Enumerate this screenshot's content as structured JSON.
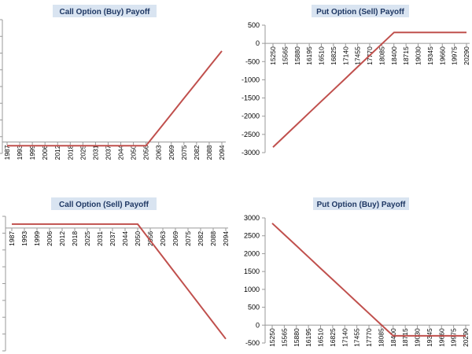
{
  "chart_data": [
    {
      "type": "line",
      "title": "Call Option (Buy) Payoff",
      "x": [
        "1987",
        "1993",
        "1999",
        "2006",
        "2012",
        "2018",
        "2025",
        "2031",
        "2037",
        "2044",
        "2050",
        "2056",
        "2063",
        "2069",
        "2075",
        "2082",
        "2088",
        "2094"
      ],
      "series": [
        {
          "values": [
            -95,
            -95,
            -95,
            -95,
            -95,
            -95,
            -95,
            -95,
            -95,
            -95,
            -95,
            -95,
            305,
            705,
            1105,
            1505,
            1905,
            2305
          ]
        }
      ],
      "ylim": [
        -190,
        3000
      ],
      "yticks": [],
      "color": "#c0504d"
    },
    {
      "type": "line",
      "title": "Put Option (Sell) Payoff",
      "x": [
        "15250",
        "15565",
        "15880",
        "16195",
        "16510",
        "16825",
        "17140",
        "17455",
        "17770",
        "18085",
        "18400",
        "18715",
        "19030",
        "19345",
        "19660",
        "19975",
        "20290"
      ],
      "series": [
        {
          "values": [
            -2850,
            -2535,
            -2220,
            -1905,
            -1590,
            -1275,
            -960,
            -645,
            -330,
            -15,
            300,
            300,
            300,
            300,
            300,
            300,
            300
          ]
        }
      ],
      "ylim": [
        -3000,
        500
      ],
      "yticks": [
        500,
        0,
        -500,
        -1000,
        -1500,
        -2000,
        -2500,
        -3000
      ],
      "color": "#c0504d"
    },
    {
      "type": "line",
      "title": "Call Option (Sell) Payoff",
      "x": [
        "1987",
        "1993",
        "1999",
        "2006",
        "2012",
        "2018",
        "2025",
        "2031",
        "2037",
        "2044",
        "2050",
        "2056",
        "2063",
        "2069",
        "2075",
        "2082",
        "2088",
        "2094"
      ],
      "series": [
        {
          "values": [
            95,
            95,
            95,
            95,
            95,
            95,
            95,
            95,
            95,
            95,
            95,
            -305,
            -705,
            -1105,
            -1505,
            -1905,
            -2305,
            -2705
          ]
        }
      ],
      "ylim": [
        -2900,
        190
      ],
      "yticks": [],
      "color": "#c0504d"
    },
    {
      "type": "line",
      "title": "Put Option (Buy) Payoff",
      "x": [
        "15250",
        "15565",
        "15880",
        "16195",
        "16510",
        "16825",
        "17140",
        "17455",
        "17770",
        "18085",
        "18400",
        "18715",
        "19030",
        "19345",
        "19660",
        "19975",
        "20290"
      ],
      "series": [
        {
          "values": [
            2850,
            2535,
            2220,
            1905,
            1590,
            1275,
            960,
            645,
            330,
            15,
            -300,
            -300,
            -300,
            -300,
            -300,
            -300,
            -300
          ]
        }
      ],
      "ylim": [
        -500,
        3000
      ],
      "yticks": [
        3000,
        2500,
        2000,
        1500,
        1000,
        500,
        0,
        -500
      ],
      "color": "#c0504d"
    }
  ]
}
